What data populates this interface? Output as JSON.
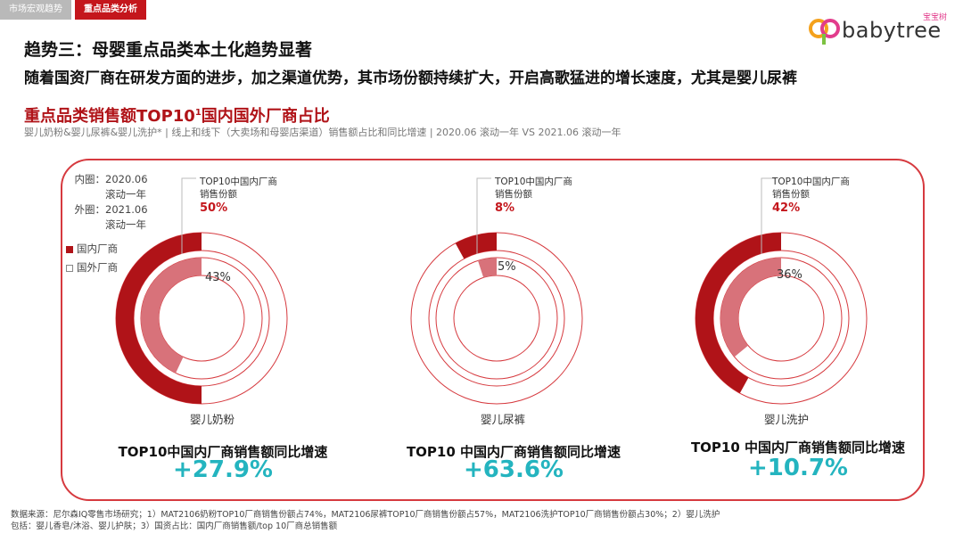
{
  "tabs": [
    "市场宏观趋势",
    "重点品类分析"
  ],
  "logo": {
    "text": "babytree",
    "cn": "宝宝树"
  },
  "headline": "趋势三：母婴重点品类本土化趋势显著",
  "subheadline": "随着国资厂商在研发方面的进步，加之渠道优势，其市场份额持续扩大，开启高歌猛进的增长速度，尤其是婴儿尿裤",
  "chart_title": {
    "main": "重点品类销售额TOP10",
    "sup": "1",
    "rest": "国内国外厂商占比"
  },
  "chart_subtitle": "婴儿奶粉&婴儿尿裤&婴儿洗护* | 线上和线下（大卖场和母婴店渠道）销售额占比和同比增速 | 2020.06 滚动一年 VS 2021.06 滚动一年",
  "legend": {
    "inner_label": "内圈：",
    "inner_period_a": "2020.06",
    "inner_period_b": "滚动一年",
    "outer_label": "外圈：",
    "outer_period_a": "2021.06",
    "outer_period_b": "滚动一年",
    "domestic": "国内厂商",
    "foreign": "国外厂商"
  },
  "colors": {
    "domestic_outer": "#b01318",
    "domestic_inner": "#d8727a",
    "border": "#d63a3f",
    "growth": "#24b4bf"
  },
  "chart_data": {
    "type": "pie",
    "charts": [
      {
        "category": "婴儿奶粉",
        "annotation_a": "TOP10中国内厂商",
        "annotation_b": "销售份额",
        "inner_2020": 43,
        "outer_2021": 50,
        "inner_label": "43%",
        "outer_label": "50%",
        "growth_label": "TOP10中国内厂商销售额同比增速",
        "growth": "+27.9%"
      },
      {
        "category": "婴儿尿裤",
        "annotation_a": "TOP10中国内厂商",
        "annotation_b": "销售份额",
        "inner_2020": 5,
        "outer_2021": 8,
        "inner_label": "5%",
        "outer_label": "8%",
        "growth_label": "TOP10 中国内厂商销售额同比增速",
        "growth": "+63.6%"
      },
      {
        "category": "婴儿洗护",
        "annotation_a": "TOP10中国内厂商",
        "annotation_b": "销售份额",
        "inner_2020": 36,
        "outer_2021": 42,
        "inner_label": "36%",
        "outer_label": "42%",
        "growth_label": "TOP10 中国内厂商销售额同比增速",
        "growth": "+10.7%"
      }
    ]
  },
  "footnote": {
    "line1": "数据来源：尼尔森IQ零售市场研究；1）MAT2106奶粉TOP10厂商销售份额占74%，MAT2106尿裤TOP10厂商销售份额占57%，MAT2106洗护TOP10厂商销售份额占30%；2）婴儿洗护",
    "line2": "包括：婴儿香皂/沐浴、婴儿护肤；3）国资占比：国内厂商销售额/top 10厂商总销售额"
  }
}
